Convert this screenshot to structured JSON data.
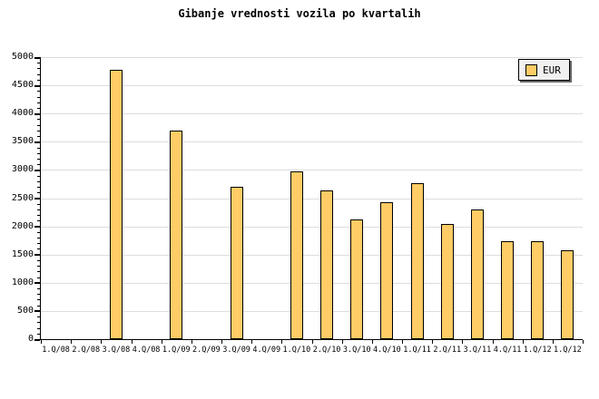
{
  "chart_data": {
    "type": "bar",
    "title": "Gibanje vrednosti vozila po kvartalih",
    "categories": [
      "1.Q/08",
      "2.Q/08",
      "3.Q/08",
      "4.Q/08",
      "1.Q/09",
      "2.Q/09",
      "3.Q/09",
      "4.Q/09",
      "1.Q/10",
      "2.Q/10",
      "3.Q/10",
      "4.Q/10",
      "1.Q/11",
      "2.Q/11",
      "3.Q/11",
      "4.Q/11",
      "1.Q/12",
      "1.Q/12"
    ],
    "series": [
      {
        "name": "EUR",
        "values": [
          null,
          null,
          4770,
          null,
          3690,
          null,
          2700,
          null,
          2970,
          2640,
          2120,
          2430,
          2760,
          2040,
          2300,
          1730,
          1730,
          1580
        ]
      }
    ],
    "xlabel": "",
    "ylabel": "",
    "ylim": [
      0,
      5000
    ],
    "ytick_major": 500,
    "ytick_minor": 100,
    "grid": "horizontal-major",
    "legend_position": "top-right",
    "legend_items": [
      {
        "label": "EUR",
        "swatch_color": "#FFCC66"
      }
    ],
    "colors": {
      "bar_fill": "#FFCC66",
      "bar_border": "#000000",
      "gridline": "#DDDDDD",
      "axis": "#000000",
      "tick": "#000000",
      "text": "#000000",
      "legend_bg": "#F0F0F0",
      "legend_border": "#000000",
      "legend_shadow": "#666666",
      "background": "#FFFFFF"
    }
  }
}
